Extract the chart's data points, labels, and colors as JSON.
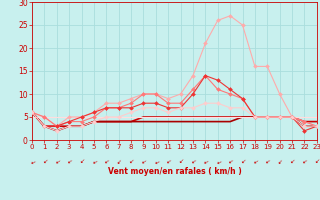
{
  "background_color": "#c8f0ee",
  "grid_color": "#aadddd",
  "xlabel": "Vent moyen/en rafales ( km/h )",
  "xlabel_color": "#cc0000",
  "tick_color": "#cc0000",
  "xlim": [
    0,
    23
  ],
  "ylim": [
    0,
    30
  ],
  "yticks": [
    0,
    5,
    10,
    15,
    20,
    25,
    30
  ],
  "xticks": [
    0,
    1,
    2,
    3,
    4,
    5,
    6,
    7,
    8,
    9,
    10,
    11,
    12,
    13,
    14,
    15,
    16,
    17,
    18,
    19,
    20,
    21,
    22,
    23
  ],
  "series": [
    {
      "x": [
        0,
        1,
        2,
        3,
        4,
        5,
        6,
        7,
        8,
        9,
        10,
        11,
        12,
        13,
        14,
        15,
        16,
        17,
        18,
        19,
        20,
        21,
        22,
        23
      ],
      "y": [
        6,
        5,
        3,
        5,
        5,
        6,
        8,
        8,
        9,
        10,
        10,
        9,
        10,
        14,
        21,
        26,
        27,
        25,
        16,
        16,
        10,
        5,
        4,
        3
      ],
      "color": "#ffaaaa",
      "lw": 0.8,
      "marker": "D",
      "markersize": 2.0
    },
    {
      "x": [
        0,
        1,
        2,
        3,
        4,
        5,
        6,
        7,
        8,
        9,
        10,
        11,
        12,
        13,
        14,
        15,
        16,
        17,
        18,
        19,
        20,
        21,
        22,
        23
      ],
      "y": [
        6,
        5,
        3,
        4,
        4,
        5,
        7,
        7,
        8,
        10,
        10,
        8,
        8,
        11,
        14,
        11,
        10,
        9,
        5,
        5,
        5,
        5,
        4,
        3
      ],
      "color": "#ff7777",
      "lw": 0.8,
      "marker": "D",
      "markersize": 2.0
    },
    {
      "x": [
        0,
        1,
        2,
        3,
        4,
        5,
        6,
        7,
        8,
        9,
        10,
        11,
        12,
        13,
        14,
        15,
        16,
        17,
        18,
        19,
        20,
        21,
        22,
        23
      ],
      "y": [
        6,
        3,
        3,
        4,
        5,
        6,
        7,
        7,
        7,
        8,
        8,
        7,
        7,
        10,
        14,
        13,
        11,
        9,
        5,
        5,
        5,
        5,
        2,
        3
      ],
      "color": "#ee3333",
      "lw": 0.8,
      "marker": "D",
      "markersize": 2.0
    },
    {
      "x": [
        0,
        1,
        2,
        3,
        4,
        5,
        6,
        7,
        8,
        9,
        10,
        11,
        12,
        13,
        14,
        15,
        16,
        17,
        18,
        19,
        20,
        21,
        22,
        23
      ],
      "y": [
        6,
        3,
        2,
        3,
        3,
        4,
        5,
        5,
        6,
        7,
        7,
        6,
        7,
        7,
        8,
        8,
        7,
        7,
        5,
        5,
        5,
        5,
        3,
        3
      ],
      "color": "#ffcccc",
      "lw": 0.8,
      "marker": "D",
      "markersize": 2.0
    },
    {
      "x": [
        0,
        1,
        2,
        3,
        4,
        5,
        6,
        7,
        8,
        9,
        10,
        11,
        12,
        13,
        14,
        15,
        16,
        17,
        18,
        19,
        20,
        21,
        22,
        23
      ],
      "y": [
        6,
        3,
        3,
        3,
        3,
        4,
        4,
        4,
        4,
        5,
        5,
        5,
        5,
        5,
        5,
        5,
        5,
        5,
        5,
        5,
        5,
        5,
        4,
        4
      ],
      "color": "#cc0000",
      "lw": 1.2,
      "marker": null,
      "markersize": 0
    },
    {
      "x": [
        0,
        1,
        2,
        3,
        4,
        5,
        6,
        7,
        8,
        9,
        10,
        11,
        12,
        13,
        14,
        15,
        16,
        17,
        18,
        19,
        20,
        21,
        22,
        23
      ],
      "y": [
        6,
        3,
        2,
        3,
        3,
        4,
        4,
        4,
        4,
        4,
        4,
        4,
        4,
        4,
        4,
        4,
        4,
        5,
        5,
        5,
        5,
        5,
        3,
        3
      ],
      "color": "#aa0000",
      "lw": 1.2,
      "marker": null,
      "markersize": 0
    },
    {
      "x": [
        0,
        1,
        2,
        3,
        4,
        5,
        6,
        7,
        8,
        9,
        10,
        11,
        12,
        13,
        14,
        15,
        16,
        17,
        18,
        19,
        20,
        21,
        22,
        23
      ],
      "y": [
        5,
        5,
        5,
        5,
        5,
        5,
        5,
        5,
        5,
        5,
        5,
        5,
        5,
        5,
        5,
        5,
        5,
        5,
        5,
        5,
        5,
        5,
        5,
        5
      ],
      "color": "#ffdddd",
      "lw": 0.8,
      "marker": null,
      "markersize": 0
    }
  ],
  "wind_arrows": [
    {
      "x": 0,
      "rot": 200
    },
    {
      "x": 1,
      "rot": 220
    },
    {
      "x": 2,
      "rot": 210
    },
    {
      "x": 3,
      "rot": 215
    },
    {
      "x": 4,
      "rot": 225
    },
    {
      "x": 5,
      "rot": 205
    },
    {
      "x": 6,
      "rot": 215
    },
    {
      "x": 7,
      "rot": 230
    },
    {
      "x": 8,
      "rot": 220
    },
    {
      "x": 9,
      "rot": 210
    },
    {
      "x": 10,
      "rot": 200
    },
    {
      "x": 11,
      "rot": 215
    },
    {
      "x": 12,
      "rot": 225
    },
    {
      "x": 13,
      "rot": 215
    },
    {
      "x": 14,
      "rot": 205
    },
    {
      "x": 15,
      "rot": 200
    },
    {
      "x": 16,
      "rot": 215
    },
    {
      "x": 17,
      "rot": 220
    },
    {
      "x": 18,
      "rot": 210
    },
    {
      "x": 19,
      "rot": 215
    },
    {
      "x": 20,
      "rot": 230
    },
    {
      "x": 21,
      "rot": 220
    },
    {
      "x": 22,
      "rot": 215
    },
    {
      "x": 23,
      "rot": 225
    }
  ],
  "wind_arrow_color": "#cc0000"
}
